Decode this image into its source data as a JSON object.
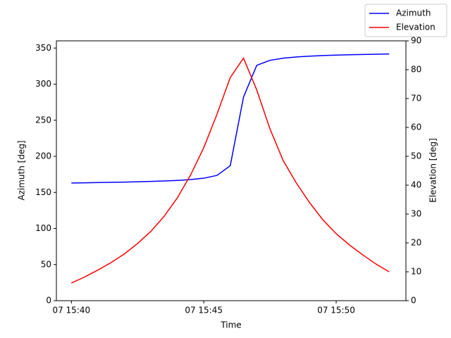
{
  "chart_data": {
    "type": "line",
    "x_label": "Time",
    "y_label": "Azimuth [deg]",
    "y2_label": "Elevation [deg]",
    "x": [
      "07 15:40:00",
      "07 15:40:30",
      "07 15:41:00",
      "07 15:41:30",
      "07 15:42:00",
      "07 15:42:30",
      "07 15:43:00",
      "07 15:43:30",
      "07 15:44:00",
      "07 15:44:30",
      "07 15:45:00",
      "07 15:45:30",
      "07 15:46:00",
      "07 15:46:30",
      "07 15:47:00",
      "07 15:47:30",
      "07 15:48:00",
      "07 15:48:30",
      "07 15:49:00",
      "07 15:49:30",
      "07 15:50:00",
      "07 15:50:30",
      "07 15:51:00",
      "07 15:51:30",
      "07 15:52:00"
    ],
    "xlim": [
      "07 15:39:26",
      "07 15:52:38"
    ],
    "xticks": [
      {
        "value": "07 15:40:00",
        "label": "07 15:40"
      },
      {
        "value": "07 15:45:00",
        "label": "07 15:45"
      },
      {
        "value": "07 15:50:00",
        "label": "07 15:50"
      }
    ],
    "ylim": [
      0,
      360
    ],
    "yticks": [
      0,
      50,
      100,
      150,
      200,
      250,
      300,
      350
    ],
    "y2lim": [
      0,
      90
    ],
    "y2ticks": [
      0,
      10,
      20,
      30,
      40,
      50,
      60,
      70,
      80,
      90
    ],
    "legend": "upper right",
    "series": [
      {
        "name": "Azimuth",
        "color": "#0000ff",
        "values": [
          163,
          163.3,
          163.6,
          164,
          164.3,
          164.7,
          165.2,
          165.8,
          166.6,
          167.8,
          169.7,
          173.6,
          187,
          282,
          326,
          333,
          336,
          337.7,
          338.8,
          339.6,
          340.2,
          340.7,
          341.1,
          341.5,
          341.8
        ]
      },
      {
        "name": "Elevation",
        "color": "#ff0000",
        "axis": "y2",
        "values": [
          6.1,
          8.2,
          10.6,
          13.2,
          16.2,
          19.8,
          24,
          29.2,
          35.6,
          43.5,
          53,
          64.6,
          77.3,
          84,
          73,
          59.5,
          48.5,
          40.7,
          33.9,
          28,
          23.2,
          19.3,
          15.9,
          12.7,
          10
        ]
      }
    ]
  }
}
